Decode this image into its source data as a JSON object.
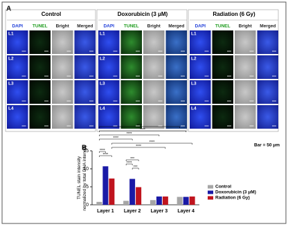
{
  "panel_a": {
    "label": "A",
    "groups": [
      {
        "title": "Control"
      },
      {
        "title": "Doxorubicin (3 μM)"
      },
      {
        "title": "Radiation (6 Gy)"
      }
    ],
    "channels": [
      "DAPI",
      "TUNEL",
      "Bright",
      "Merged"
    ],
    "rows": [
      "L1",
      "L2",
      "L3",
      "L4"
    ],
    "scale_note": "Bar = 50 μm"
  },
  "panel_b": {
    "label": "B"
  },
  "chart_data": {
    "type": "bar",
    "y_label": "TUNEL stain intensity\nnormalized by total DNA intensity",
    "categories": [
      "Layer 1",
      "Layer 2",
      "Layer 3",
      "Layer 4"
    ],
    "series": [
      {
        "name": "Control",
        "color": "#a6a6a6",
        "values": [
          0.8,
          1.1,
          1.3,
          2.2
        ]
      },
      {
        "name": "Doxorubicin (3 μM)",
        "color": "#1a1aa6",
        "values": [
          10.7,
          7.2,
          2.3,
          2.2
        ]
      },
      {
        "name": "Radiation (6 Gy)",
        "color": "#c0141e",
        "values": [
          7.3,
          4.9,
          2.3,
          2.3
        ]
      }
    ],
    "ylim": [
      0,
      15
    ],
    "yticks": [
      0,
      5,
      10,
      15
    ],
    "annotations": [
      "****",
      "****",
      "****",
      "****",
      "****",
      "****",
      "****",
      "****",
      "***",
      "****",
      "***"
    ],
    "legend": "right"
  }
}
